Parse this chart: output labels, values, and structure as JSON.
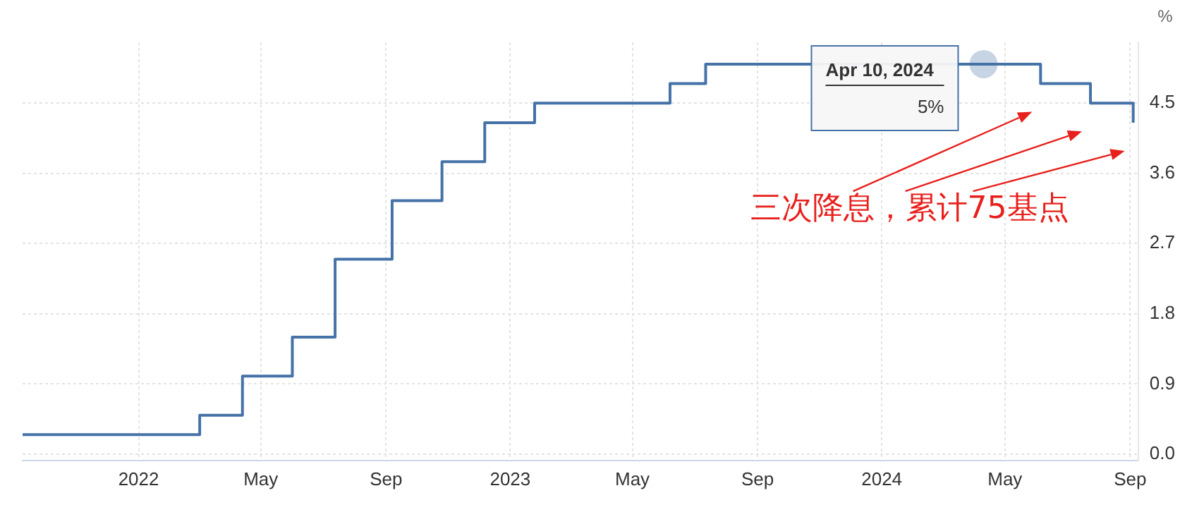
{
  "chart_data": {
    "type": "step",
    "ylabel": "%",
    "x": [
      "2021-09-09",
      "2022-03-02",
      "2022-04-13",
      "2022-06-01",
      "2022-07-13",
      "2022-09-07",
      "2022-10-26",
      "2022-12-07",
      "2023-01-25",
      "2023-06-07",
      "2023-07-12",
      "2024-06-05",
      "2024-07-24",
      "2024-09-04"
    ],
    "series": [
      {
        "color": "#4572a7",
        "values": [
          0.25,
          0.5,
          1.0,
          1.5,
          2.5,
          3.25,
          3.75,
          4.25,
          4.5,
          4.75,
          5.0,
          4.75,
          4.5,
          4.25
        ]
      }
    ],
    "xlim": [
      "2021-09-09",
      "2024-09-09"
    ],
    "xticks": [
      {
        "value": "2022-01-01",
        "label": "2022"
      },
      {
        "value": "2022-05-01",
        "label": "May"
      },
      {
        "value": "2022-09-01",
        "label": "Sep"
      },
      {
        "value": "2023-01-01",
        "label": "2023"
      },
      {
        "value": "2023-05-01",
        "label": "May"
      },
      {
        "value": "2023-09-01",
        "label": "Sep"
      },
      {
        "value": "2024-01-01",
        "label": "2024"
      },
      {
        "value": "2024-05-01",
        "label": "May"
      },
      {
        "value": "2024-09-01",
        "label": "Sep"
      }
    ],
    "ylim": [
      -0.08,
      5.28
    ],
    "yticks": [
      {
        "value": 0,
        "label": "0.0"
      },
      0.9,
      1.8,
      2.7,
      3.6,
      4.5
    ],
    "grid": true,
    "legend": false,
    "marker": "none",
    "line_style": "solid",
    "annotations": [
      {
        "text": "Apr 10, 2024",
        "x": "2024-04-10",
        "y": 5
      },
      "5%",
      "三次降息，累计75基点"
    ]
  }
}
